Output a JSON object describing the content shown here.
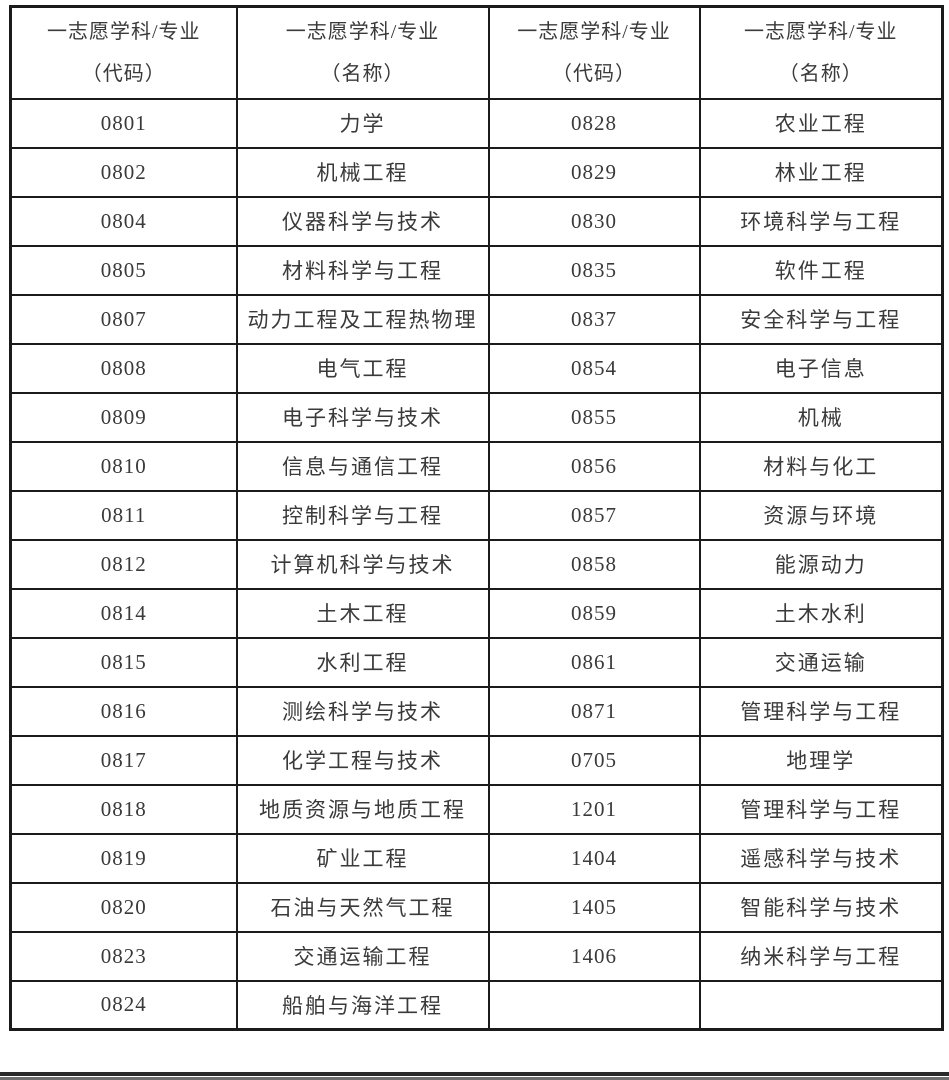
{
  "colors": {
    "text": "#3a3a3a",
    "border": "#1b1b1b",
    "background": "#ffffff",
    "bottom_bar_dark": "#2a2a2a",
    "bottom_bar_gray": "#6e6e6e"
  },
  "table": {
    "headers": [
      {
        "line1": "一志愿学科/专业",
        "line2": "（代码）"
      },
      {
        "line1": "一志愿学科/专业",
        "line2": "（名称）"
      },
      {
        "line1": "一志愿学科/专业",
        "line2": "（代码）"
      },
      {
        "line1": "一志愿学科/专业",
        "line2": "（名称）"
      }
    ],
    "rows": [
      [
        "0801",
        "力学",
        "0828",
        "农业工程"
      ],
      [
        "0802",
        "机械工程",
        "0829",
        "林业工程"
      ],
      [
        "0804",
        "仪器科学与技术",
        "0830",
        "环境科学与工程"
      ],
      [
        "0805",
        "材料科学与工程",
        "0835",
        "软件工程"
      ],
      [
        "0807",
        "动力工程及工程热物理",
        "0837",
        "安全科学与工程"
      ],
      [
        "0808",
        "电气工程",
        "0854",
        "电子信息"
      ],
      [
        "0809",
        "电子科学与技术",
        "0855",
        "机械"
      ],
      [
        "0810",
        "信息与通信工程",
        "0856",
        "材料与化工"
      ],
      [
        "0811",
        "控制科学与工程",
        "0857",
        "资源与环境"
      ],
      [
        "0812",
        "计算机科学与技术",
        "0858",
        "能源动力"
      ],
      [
        "0814",
        "土木工程",
        "0859",
        "土木水利"
      ],
      [
        "0815",
        "水利工程",
        "0861",
        "交通运输"
      ],
      [
        "0816",
        "测绘科学与技术",
        "0871",
        "管理科学与工程"
      ],
      [
        "0817",
        "化学工程与技术",
        "0705",
        "地理学"
      ],
      [
        "0818",
        "地质资源与地质工程",
        "1201",
        "管理科学与工程"
      ],
      [
        "0819",
        "矿业工程",
        "1404",
        "遥感科学与技术"
      ],
      [
        "0820",
        "石油与天然气工程",
        "1405",
        "智能科学与技术"
      ],
      [
        "0823",
        "交通运输工程",
        "1406",
        "纳米科学与工程"
      ],
      [
        "0824",
        "船舶与海洋工程",
        "",
        ""
      ]
    ]
  }
}
